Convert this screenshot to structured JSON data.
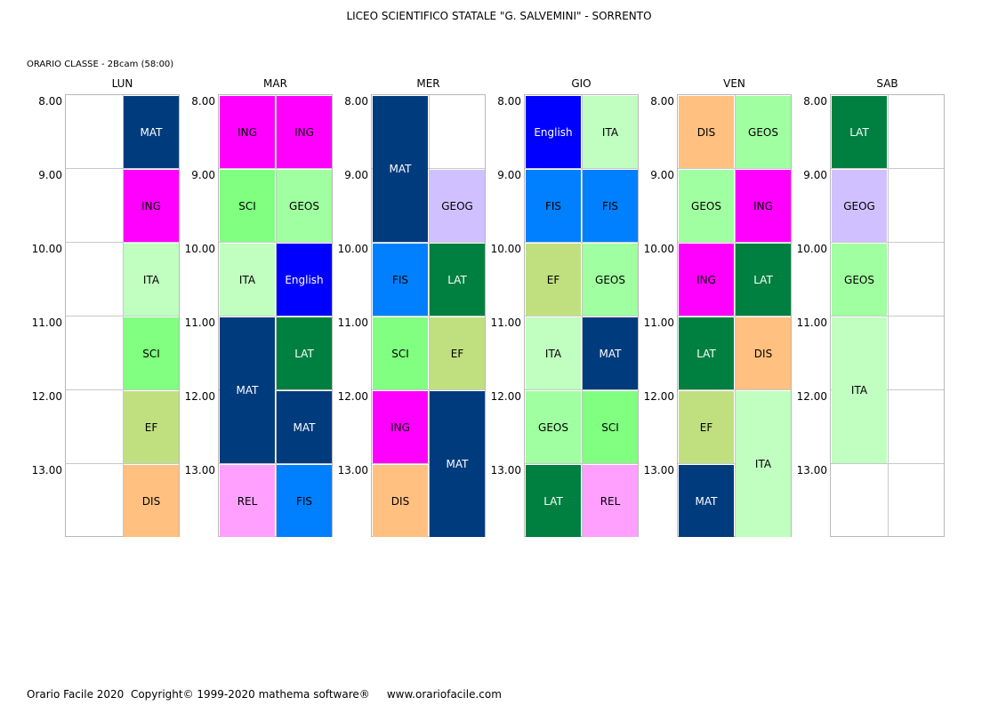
{
  "title": "LICEO SCIENTIFICO STATALE \"G. SALVEMINI\" - SORRENTO",
  "class_label": "ORARIO CLASSE  -  2Bcam (58:00)",
  "hours": [
    "8.00",
    "9.00",
    "10.00",
    "11.00",
    "12.00",
    "13.00"
  ],
  "footer": {
    "copyright": "Orario Facile 2020  Copyright© 1999-2020 mathema software®",
    "website": "www.orariofacile.com"
  },
  "subject_colors": {
    "MAT": {
      "bg": "#003c7d",
      "fg": "#ffffff"
    },
    "ING": {
      "bg": "#ff00ff",
      "fg": "#000000"
    },
    "ITA": {
      "bg": "#c0ffc0",
      "fg": "#000000"
    },
    "SCI": {
      "bg": "#80ff80",
      "fg": "#000000"
    },
    "EF": {
      "bg": "#c0e080",
      "fg": "#000000"
    },
    "DIS": {
      "bg": "#ffc080",
      "fg": "#000000"
    },
    "GEOS": {
      "bg": "#a0ffa0",
      "fg": "#000000"
    },
    "English": {
      "bg": "#0000ff",
      "fg": "#ffffff"
    },
    "LAT": {
      "bg": "#008040",
      "fg": "#ffffff"
    },
    "REL": {
      "bg": "#ffa0ff",
      "fg": "#000000"
    },
    "FIS": {
      "bg": "#0080ff",
      "fg": "#000000"
    },
    "GEOG": {
      "bg": "#d0c0ff",
      "fg": "#000000"
    }
  },
  "days": [
    {
      "name": "LUN",
      "slots": [
        {
          "col": 2,
          "start": 0,
          "span": 1,
          "subject": "MAT"
        },
        {
          "col": 2,
          "start": 1,
          "span": 1,
          "subject": "ING"
        },
        {
          "col": 2,
          "start": 2,
          "span": 1,
          "subject": "ITA"
        },
        {
          "col": 2,
          "start": 3,
          "span": 1,
          "subject": "SCI"
        },
        {
          "col": 2,
          "start": 4,
          "span": 1,
          "subject": "EF"
        },
        {
          "col": 2,
          "start": 5,
          "span": 1,
          "subject": "DIS"
        }
      ]
    },
    {
      "name": "MAR",
      "slots": [
        {
          "col": 1,
          "start": 0,
          "span": 1,
          "subject": "ING"
        },
        {
          "col": 2,
          "start": 0,
          "span": 1,
          "subject": "ING"
        },
        {
          "col": 1,
          "start": 1,
          "span": 1,
          "subject": "SCI"
        },
        {
          "col": 2,
          "start": 1,
          "span": 1,
          "subject": "GEOS"
        },
        {
          "col": 1,
          "start": 2,
          "span": 1,
          "subject": "ITA"
        },
        {
          "col": 2,
          "start": 2,
          "span": 1,
          "subject": "English"
        },
        {
          "col": 1,
          "start": 3,
          "span": 2,
          "subject": "MAT"
        },
        {
          "col": 2,
          "start": 3,
          "span": 1,
          "subject": "LAT"
        },
        {
          "col": 2,
          "start": 4,
          "span": 1,
          "subject": "MAT"
        },
        {
          "col": 1,
          "start": 5,
          "span": 1,
          "subject": "REL"
        },
        {
          "col": 2,
          "start": 5,
          "span": 1,
          "subject": "FIS"
        }
      ]
    },
    {
      "name": "MER",
      "slots": [
        {
          "col": 1,
          "start": 0,
          "span": 2,
          "subject": "MAT"
        },
        {
          "col": 2,
          "start": 1,
          "span": 1,
          "subject": "GEOG"
        },
        {
          "col": 1,
          "start": 2,
          "span": 1,
          "subject": "FIS"
        },
        {
          "col": 2,
          "start": 2,
          "span": 1,
          "subject": "LAT"
        },
        {
          "col": 1,
          "start": 3,
          "span": 1,
          "subject": "SCI"
        },
        {
          "col": 2,
          "start": 3,
          "span": 1,
          "subject": "EF"
        },
        {
          "col": 1,
          "start": 4,
          "span": 1,
          "subject": "ING"
        },
        {
          "col": 2,
          "start": 4,
          "span": 2,
          "subject": "MAT"
        },
        {
          "col": 1,
          "start": 5,
          "span": 1,
          "subject": "DIS"
        }
      ]
    },
    {
      "name": "GIO",
      "slots": [
        {
          "col": 1,
          "start": 0,
          "span": 1,
          "subject": "English"
        },
        {
          "col": 2,
          "start": 0,
          "span": 1,
          "subject": "ITA"
        },
        {
          "col": 1,
          "start": 1,
          "span": 1,
          "subject": "FIS"
        },
        {
          "col": 2,
          "start": 1,
          "span": 1,
          "subject": "FIS"
        },
        {
          "col": 1,
          "start": 2,
          "span": 1,
          "subject": "EF"
        },
        {
          "col": 2,
          "start": 2,
          "span": 1,
          "subject": "GEOS"
        },
        {
          "col": 1,
          "start": 3,
          "span": 1,
          "subject": "ITA"
        },
        {
          "col": 2,
          "start": 3,
          "span": 1,
          "subject": "MAT"
        },
        {
          "col": 1,
          "start": 4,
          "span": 1,
          "subject": "GEOS"
        },
        {
          "col": 2,
          "start": 4,
          "span": 1,
          "subject": "SCI"
        },
        {
          "col": 1,
          "start": 5,
          "span": 1,
          "subject": "LAT"
        },
        {
          "col": 2,
          "start": 5,
          "span": 1,
          "subject": "REL"
        }
      ]
    },
    {
      "name": "VEN",
      "slots": [
        {
          "col": 1,
          "start": 0,
          "span": 1,
          "subject": "DIS"
        },
        {
          "col": 2,
          "start": 0,
          "span": 1,
          "subject": "GEOS"
        },
        {
          "col": 1,
          "start": 1,
          "span": 1,
          "subject": "GEOS"
        },
        {
          "col": 2,
          "start": 1,
          "span": 1,
          "subject": "ING"
        },
        {
          "col": 1,
          "start": 2,
          "span": 1,
          "subject": "ING"
        },
        {
          "col": 2,
          "start": 2,
          "span": 1,
          "subject": "LAT"
        },
        {
          "col": 1,
          "start": 3,
          "span": 1,
          "subject": "LAT"
        },
        {
          "col": 2,
          "start": 3,
          "span": 1,
          "subject": "DIS"
        },
        {
          "col": 1,
          "start": 4,
          "span": 1,
          "subject": "EF"
        },
        {
          "col": 2,
          "start": 4,
          "span": 2,
          "subject": "ITA"
        },
        {
          "col": 1,
          "start": 5,
          "span": 1,
          "subject": "MAT"
        }
      ]
    },
    {
      "name": "SAB",
      "slots": [
        {
          "col": 1,
          "start": 0,
          "span": 1,
          "subject": "LAT"
        },
        {
          "col": 1,
          "start": 1,
          "span": 1,
          "subject": "GEOG"
        },
        {
          "col": 1,
          "start": 2,
          "span": 1,
          "subject": "GEOS"
        },
        {
          "col": 1,
          "start": 3,
          "span": 2,
          "subject": "ITA"
        }
      ]
    }
  ]
}
